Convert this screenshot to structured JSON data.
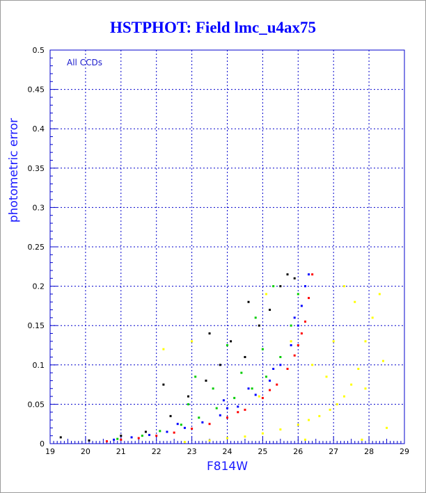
{
  "chart_data": {
    "type": "scatter",
    "title": "HSTPHOT: Field lmc_u4ax75",
    "xlabel": "F814W",
    "ylabel": "photometric error",
    "annotation": "All CCDs",
    "xlim": [
      19,
      29
    ],
    "ylim": [
      0,
      0.5
    ],
    "xticks": [
      "19",
      "20",
      "21",
      "22",
      "23",
      "24",
      "25",
      "26",
      "27",
      "28",
      "29"
    ],
    "yticks": [
      "0",
      "0.05",
      "0.1",
      "0.15",
      "0.2",
      "0.25",
      "0.3",
      "0.35",
      "0.4",
      "0.45",
      "0.5"
    ],
    "grid": true,
    "series": [
      {
        "color": "#ff0000",
        "points": [
          [
            20.6,
            0.003
          ],
          [
            21.0,
            0.005
          ],
          [
            21.5,
            0.007
          ],
          [
            22.0,
            0.01
          ],
          [
            22.5,
            0.014
          ],
          [
            23.0,
            0.019
          ],
          [
            23.5,
            0.025
          ],
          [
            24.0,
            0.033
          ],
          [
            24.5,
            0.043
          ],
          [
            25.0,
            0.058
          ],
          [
            25.4,
            0.075
          ],
          [
            25.7,
            0.095
          ],
          [
            26.0,
            0.125
          ],
          [
            26.2,
            0.155
          ],
          [
            26.3,
            0.185
          ],
          [
            26.4,
            0.215
          ],
          [
            24.3,
            0.04
          ],
          [
            25.2,
            0.068
          ],
          [
            25.9,
            0.112
          ],
          [
            26.1,
            0.14
          ]
        ]
      },
      {
        "color": "#0000ff",
        "points": [
          [
            20.8,
            0.005
          ],
          [
            21.3,
            0.008
          ],
          [
            21.8,
            0.011
          ],
          [
            22.3,
            0.015
          ],
          [
            22.8,
            0.02
          ],
          [
            23.3,
            0.027
          ],
          [
            23.8,
            0.036
          ],
          [
            24.3,
            0.047
          ],
          [
            24.8,
            0.062
          ],
          [
            25.2,
            0.08
          ],
          [
            25.5,
            0.1
          ],
          [
            25.8,
            0.125
          ],
          [
            26.0,
            0.15
          ],
          [
            26.1,
            0.175
          ],
          [
            26.2,
            0.2
          ],
          [
            26.3,
            0.215
          ],
          [
            23.9,
            0.055
          ],
          [
            24.6,
            0.07
          ],
          [
            25.3,
            0.095
          ],
          [
            25.9,
            0.16
          ],
          [
            22.6,
            0.025
          ],
          [
            24.0,
            0.045
          ]
        ]
      },
      {
        "color": "#00cc00",
        "points": [
          [
            20.9,
            0.006
          ],
          [
            21.6,
            0.01
          ],
          [
            22.1,
            0.016
          ],
          [
            22.7,
            0.024
          ],
          [
            23.2,
            0.033
          ],
          [
            23.7,
            0.045
          ],
          [
            24.2,
            0.058
          ],
          [
            24.7,
            0.07
          ],
          [
            25.1,
            0.085
          ],
          [
            25.5,
            0.11
          ],
          [
            25.8,
            0.15
          ],
          [
            26.0,
            0.19
          ],
          [
            22.9,
            0.05
          ],
          [
            23.6,
            0.07
          ],
          [
            24.4,
            0.09
          ],
          [
            25.0,
            0.12
          ],
          [
            23.1,
            0.085
          ],
          [
            24.0,
            0.125
          ],
          [
            24.8,
            0.16
          ],
          [
            25.3,
            0.2
          ]
        ]
      },
      {
        "color": "#000000",
        "points": [
          [
            19.3,
            0.008
          ],
          [
            20.1,
            0.004
          ],
          [
            21.0,
            0.01
          ],
          [
            21.7,
            0.015
          ],
          [
            22.4,
            0.035
          ],
          [
            22.9,
            0.06
          ],
          [
            23.4,
            0.08
          ],
          [
            23.8,
            0.1
          ],
          [
            24.1,
            0.13
          ],
          [
            24.5,
            0.11
          ],
          [
            24.9,
            0.15
          ],
          [
            25.2,
            0.17
          ],
          [
            25.5,
            0.2
          ],
          [
            25.7,
            0.215
          ],
          [
            23.5,
            0.14
          ],
          [
            22.2,
            0.075
          ],
          [
            24.6,
            0.18
          ],
          [
            25.9,
            0.21
          ]
        ]
      },
      {
        "color": "#ffff00",
        "points": [
          [
            22.8,
            0.002
          ],
          [
            23.5,
            0.004
          ],
          [
            24.0,
            0.007
          ],
          [
            24.5,
            0.009
          ],
          [
            25.0,
            0.013
          ],
          [
            25.5,
            0.018
          ],
          [
            26.0,
            0.024
          ],
          [
            26.3,
            0.03
          ],
          [
            26.6,
            0.035
          ],
          [
            26.9,
            0.043
          ],
          [
            27.1,
            0.05
          ],
          [
            27.3,
            0.06
          ],
          [
            27.5,
            0.075
          ],
          [
            27.7,
            0.095
          ],
          [
            27.9,
            0.13
          ],
          [
            28.1,
            0.16
          ],
          [
            28.3,
            0.19
          ],
          [
            28.4,
            0.105
          ],
          [
            27.6,
            0.18
          ],
          [
            27.3,
            0.2
          ],
          [
            27.0,
            0.13
          ],
          [
            26.4,
            0.1
          ],
          [
            25.8,
            0.13
          ],
          [
            24.9,
            0.06
          ],
          [
            26.8,
            0.085
          ],
          [
            28.5,
            0.02
          ],
          [
            27.8,
            0.005
          ],
          [
            26.2,
            0.005
          ],
          [
            22.2,
            0.12
          ],
          [
            23.0,
            0.13
          ],
          [
            25.1,
            0.19
          ],
          [
            27.9,
            0.07
          ]
        ]
      }
    ]
  }
}
